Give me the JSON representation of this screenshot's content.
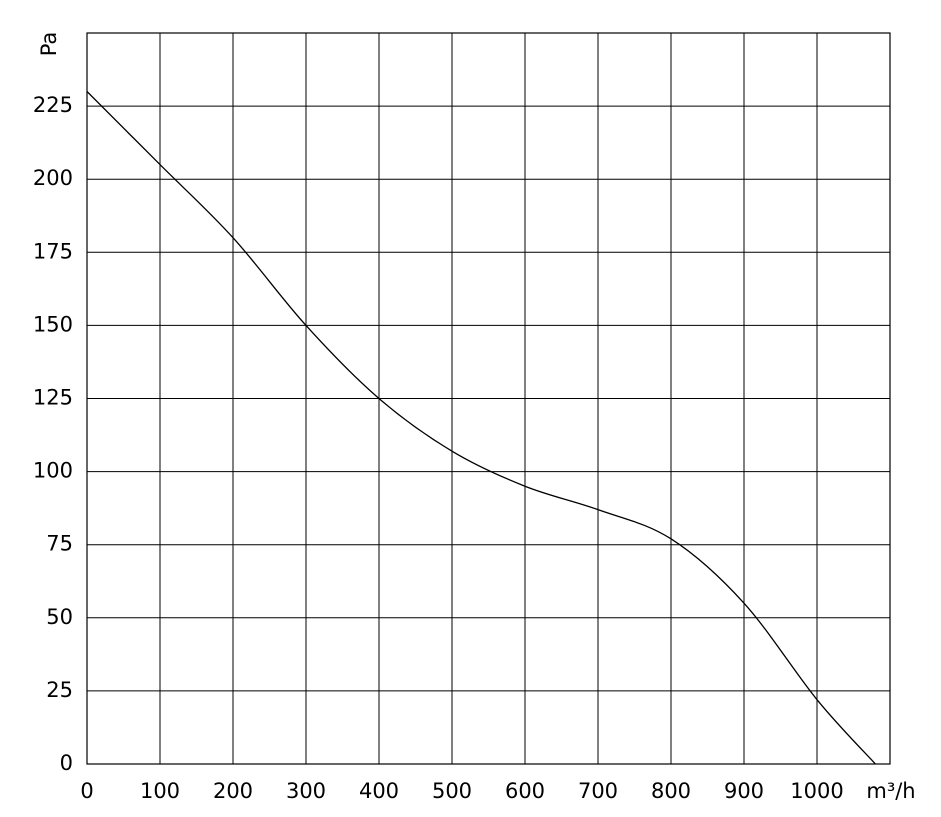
{
  "chart_data": {
    "type": "line",
    "x_label": "m³/h",
    "y_label": "Pa",
    "x": [
      0,
      100,
      200,
      300,
      400,
      500,
      600,
      700,
      800,
      900,
      1000,
      1080
    ],
    "values": [
      230,
      205,
      180,
      150,
      125,
      107,
      95,
      87,
      77,
      55,
      22,
      0
    ],
    "color": "#000000",
    "xlim": [
      0,
      1100
    ],
    "xticks": [
      0,
      100,
      200,
      300,
      400,
      500,
      600,
      700,
      800,
      900,
      1000
    ],
    "ylim": [
      0,
      250
    ],
    "yticks": [
      0,
      25,
      50,
      75,
      100,
      125,
      150,
      175,
      200,
      225
    ],
    "grid": true
  }
}
